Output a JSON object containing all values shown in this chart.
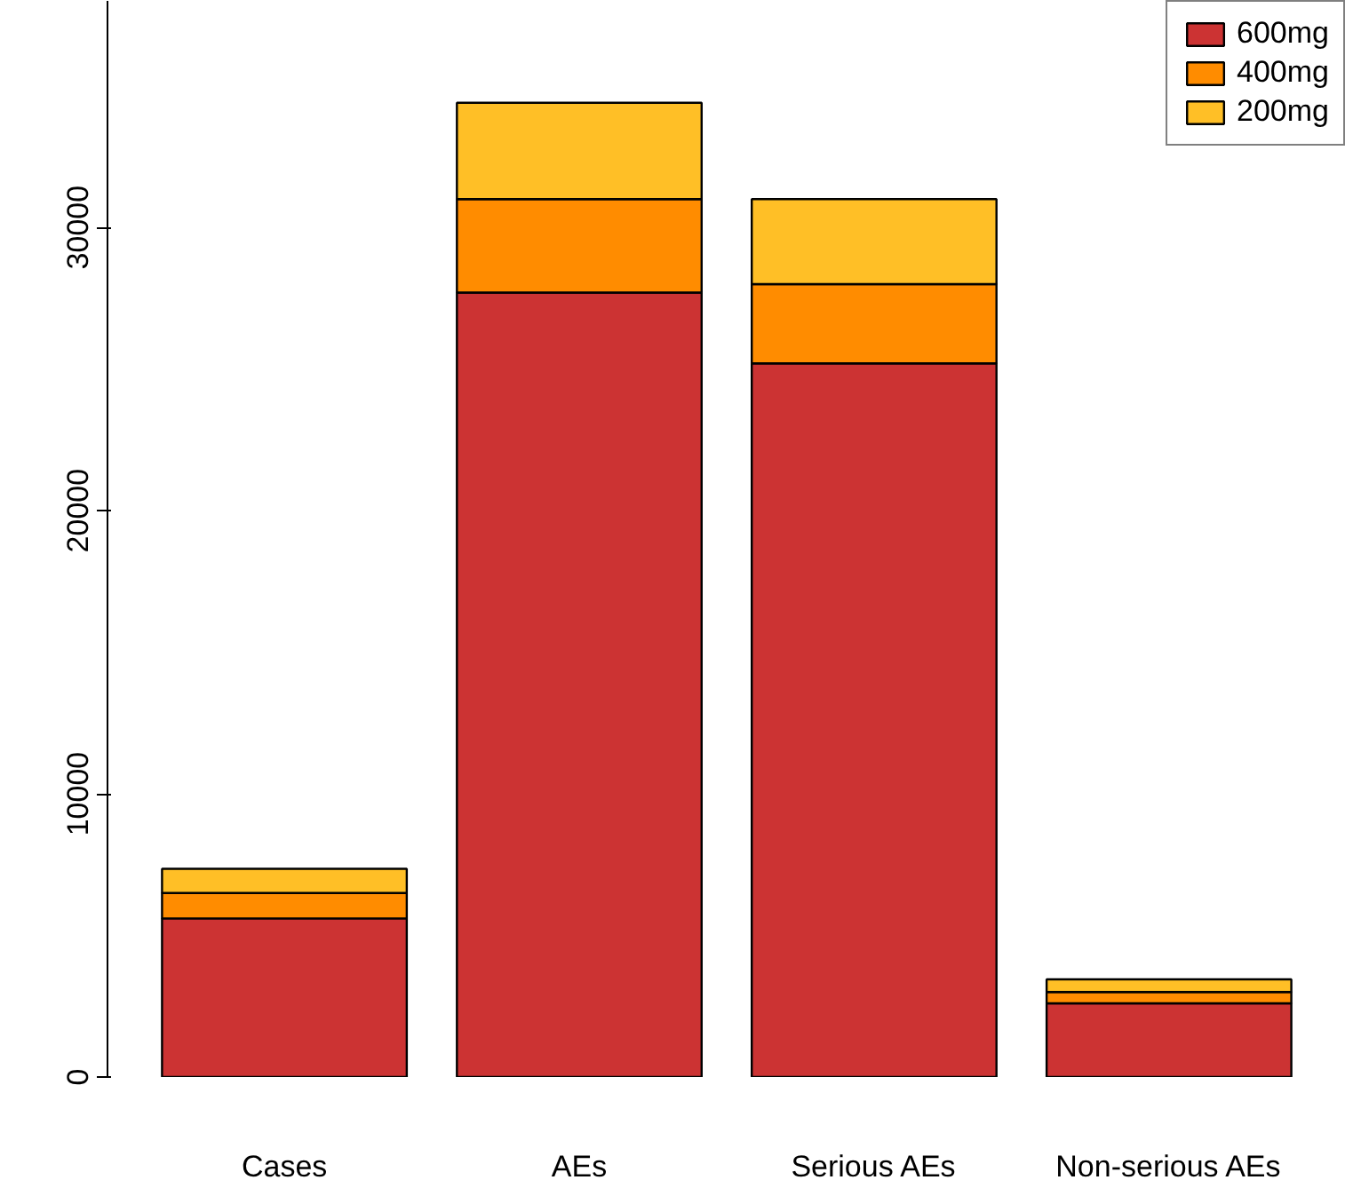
{
  "chart_data": {
    "type": "bar",
    "stacked": true,
    "categories": [
      "Cases",
      "AEs",
      "Serious AEs",
      "Non-serious AEs"
    ],
    "series": [
      {
        "name": "600mg",
        "color": "#cc3333",
        "values": [
          5600,
          27700,
          25200,
          2600
        ]
      },
      {
        "name": "400mg",
        "color": "#ff8c00",
        "values": [
          900,
          3300,
          2800,
          400
        ]
      },
      {
        "name": "200mg",
        "color": "#ffbf26",
        "values": [
          850,
          3400,
          3000,
          450
        ]
      }
    ],
    "ylim": [
      0,
      38000
    ],
    "yticks": [
      0,
      10000,
      20000,
      30000
    ],
    "grid": false,
    "legend": "top right"
  }
}
